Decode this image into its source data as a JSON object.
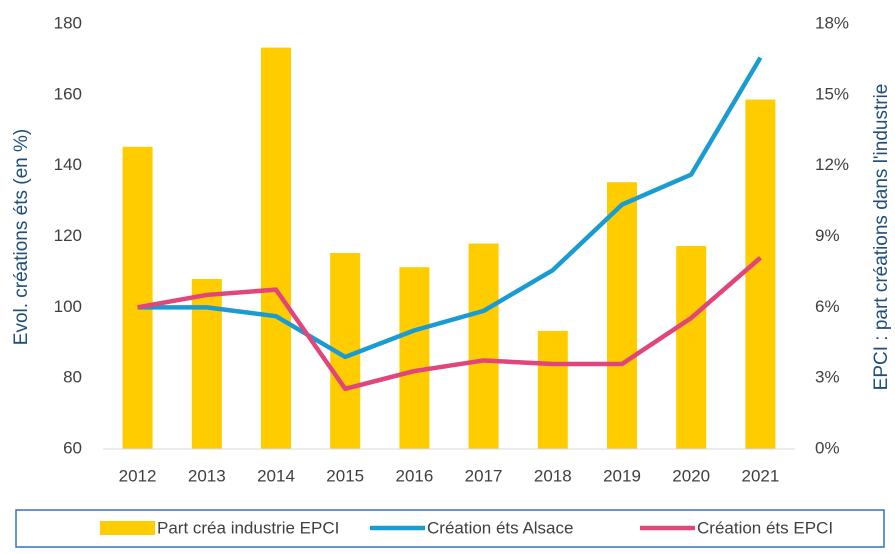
{
  "chart_data": {
    "type": "bar-line",
    "categories": [
      "2012",
      "2013",
      "2014",
      "2015",
      "2016",
      "2017",
      "2018",
      "2019",
      "2020",
      "2021"
    ],
    "y_label": "Evol. créations éts (en %)",
    "y2_label": "EPCI : part créations dans l'industrie",
    "ylim": [
      60,
      180
    ],
    "yticks": [
      60,
      80,
      100,
      120,
      140,
      160,
      180
    ],
    "y2lim": [
      0,
      18
    ],
    "y2ticks": [
      {
        "value": 0,
        "label": "0%"
      },
      {
        "value": 3,
        "label": "3%"
      },
      {
        "value": 6,
        "label": "6%"
      },
      {
        "value": 9,
        "label": "9%"
      },
      {
        "value": 12,
        "label": "12%"
      },
      {
        "value": 15,
        "label": "15%"
      },
      {
        "value": 18,
        "label": "18%"
      }
    ],
    "grid": false,
    "legend": "bottom",
    "series": [
      {
        "name": "Part créa industrie EPCI",
        "type": "bar",
        "axis": "y2",
        "color": "#ffcc00",
        "values": [
          12.8,
          7.2,
          17.0,
          8.3,
          7.7,
          8.7,
          5.0,
          11.3,
          8.6,
          14.8
        ]
      },
      {
        "name": "Création éts Alsace",
        "type": "line",
        "axis": "y",
        "color": "#1a9bd1",
        "values": [
          100,
          100,
          97.5,
          86,
          93.5,
          99,
          110.5,
          129,
          137.5,
          170.5
        ]
      },
      {
        "name": "Création éts EPCI",
        "type": "line",
        "axis": "y",
        "color": "#e0457b",
        "values": [
          100,
          103.5,
          105,
          77,
          82,
          85,
          84,
          84,
          97,
          114
        ]
      }
    ]
  }
}
